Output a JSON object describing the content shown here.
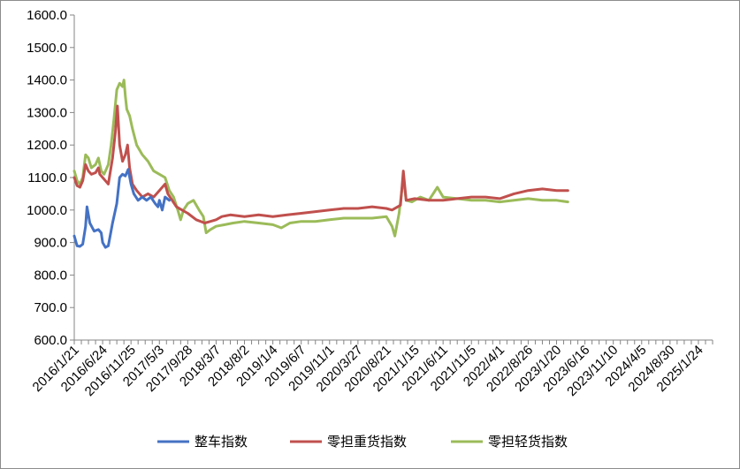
{
  "chart_data": {
    "type": "line",
    "title": "",
    "xlabel": "",
    "ylabel": "",
    "ylim": [
      600,
      1600
    ],
    "yticks": [
      "600.0",
      "700.0",
      "800.0",
      "900.0",
      "1000.0",
      "1100.0",
      "1200.0",
      "1300.0",
      "1400.0",
      "1500.0",
      "1600.0"
    ],
    "xticks": [
      "2016/1/21",
      "2016/6/24",
      "2016/11/25",
      "2017/5/3",
      "2017/9/28",
      "2018/3/7",
      "2018/8/2",
      "2019/1/4",
      "2019/6/7",
      "2019/11/1",
      "2020/3/27",
      "2020/8/21",
      "2021/1/15",
      "2021/6/11",
      "2021/11/5",
      "2022/4/1",
      "2022/8/26",
      "2023/1/20",
      "2023/6/16",
      "2023/11/10",
      "2024/4/5",
      "2024/8/30",
      "2025/1/24"
    ],
    "grid": false,
    "legend_position": "bottom",
    "series": [
      {
        "name": "整车指数",
        "color": "#4472c4",
        "points": [
          [
            0,
            920
          ],
          [
            0.05,
            905
          ],
          [
            0.1,
            890
          ],
          [
            0.2,
            888
          ],
          [
            0.3,
            895
          ],
          [
            0.4,
            950
          ],
          [
            0.45,
            1010
          ],
          [
            0.55,
            960
          ],
          [
            0.7,
            935
          ],
          [
            0.85,
            940
          ],
          [
            0.95,
            930
          ],
          [
            1.0,
            900
          ],
          [
            1.1,
            885
          ],
          [
            1.2,
            890
          ],
          [
            1.35,
            960
          ],
          [
            1.5,
            1020
          ],
          [
            1.6,
            1100
          ],
          [
            1.7,
            1110
          ],
          [
            1.8,
            1105
          ],
          [
            1.9,
            1125
          ],
          [
            2.0,
            1080
          ],
          [
            2.1,
            1050
          ],
          [
            2.25,
            1030
          ],
          [
            2.4,
            1040
          ],
          [
            2.55,
            1030
          ],
          [
            2.7,
            1040
          ],
          [
            2.85,
            1020
          ],
          [
            2.95,
            1010
          ],
          [
            3.0,
            1030
          ],
          [
            3.1,
            1000
          ],
          [
            3.2,
            1040
          ],
          [
            3.35,
            1030
          ]
        ]
      },
      {
        "name": "零担重货指数",
        "color": "#c0504d",
        "points": [
          [
            0,
            1100
          ],
          [
            0.1,
            1075
          ],
          [
            0.2,
            1070
          ],
          [
            0.3,
            1090
          ],
          [
            0.4,
            1140
          ],
          [
            0.5,
            1120
          ],
          [
            0.6,
            1110
          ],
          [
            0.75,
            1115
          ],
          [
            0.85,
            1130
          ],
          [
            0.9,
            1110
          ],
          [
            1.0,
            1100
          ],
          [
            1.1,
            1090
          ],
          [
            1.2,
            1080
          ],
          [
            1.35,
            1160
          ],
          [
            1.45,
            1240
          ],
          [
            1.52,
            1320
          ],
          [
            1.6,
            1200
          ],
          [
            1.7,
            1150
          ],
          [
            1.8,
            1170
          ],
          [
            1.88,
            1200
          ],
          [
            1.95,
            1130
          ],
          [
            2.05,
            1080
          ],
          [
            2.2,
            1060
          ],
          [
            2.4,
            1040
          ],
          [
            2.6,
            1050
          ],
          [
            2.8,
            1040
          ],
          [
            3.0,
            1060
          ],
          [
            3.2,
            1080
          ],
          [
            3.3,
            1050
          ],
          [
            3.45,
            1030
          ],
          [
            3.6,
            1010
          ],
          [
            3.8,
            1000
          ],
          [
            4.0,
            990
          ],
          [
            4.3,
            970
          ],
          [
            4.6,
            960
          ],
          [
            4.8,
            965
          ],
          [
            5.0,
            970
          ],
          [
            5.2,
            980
          ],
          [
            5.5,
            985
          ],
          [
            6.0,
            980
          ],
          [
            6.5,
            985
          ],
          [
            7.0,
            980
          ],
          [
            7.5,
            985
          ],
          [
            8.0,
            990
          ],
          [
            8.5,
            995
          ],
          [
            9.0,
            1000
          ],
          [
            9.5,
            1005
          ],
          [
            10.0,
            1005
          ],
          [
            10.5,
            1010
          ],
          [
            11.0,
            1005
          ],
          [
            11.2,
            1000
          ],
          [
            11.5,
            1015
          ],
          [
            11.6,
            1120
          ],
          [
            11.7,
            1030
          ],
          [
            12.0,
            1035
          ],
          [
            12.5,
            1030
          ],
          [
            13.0,
            1030
          ],
          [
            13.5,
            1035
          ],
          [
            14.0,
            1040
          ],
          [
            14.5,
            1040
          ],
          [
            15.0,
            1035
          ],
          [
            15.5,
            1050
          ],
          [
            16.0,
            1060
          ],
          [
            16.5,
            1065
          ],
          [
            17.0,
            1060
          ],
          [
            17.4,
            1060
          ]
        ]
      },
      {
        "name": "零担轻货指数",
        "color": "#9bbb59",
        "points": [
          [
            0,
            1120
          ],
          [
            0.1,
            1090
          ],
          [
            0.2,
            1080
          ],
          [
            0.3,
            1100
          ],
          [
            0.4,
            1170
          ],
          [
            0.5,
            1160
          ],
          [
            0.6,
            1130
          ],
          [
            0.75,
            1140
          ],
          [
            0.85,
            1160
          ],
          [
            0.95,
            1120
          ],
          [
            1.05,
            1110
          ],
          [
            1.2,
            1140
          ],
          [
            1.3,
            1200
          ],
          [
            1.4,
            1280
          ],
          [
            1.5,
            1370
          ],
          [
            1.6,
            1390
          ],
          [
            1.7,
            1380
          ],
          [
            1.75,
            1400
          ],
          [
            1.8,
            1350
          ],
          [
            1.85,
            1310
          ],
          [
            1.95,
            1290
          ],
          [
            2.05,
            1250
          ],
          [
            2.2,
            1200
          ],
          [
            2.4,
            1170
          ],
          [
            2.6,
            1150
          ],
          [
            2.8,
            1120
          ],
          [
            3.0,
            1110
          ],
          [
            3.2,
            1100
          ],
          [
            3.35,
            1060
          ],
          [
            3.5,
            1040
          ],
          [
            3.65,
            1000
          ],
          [
            3.75,
            970
          ],
          [
            3.85,
            1000
          ],
          [
            4.0,
            1020
          ],
          [
            4.2,
            1030
          ],
          [
            4.4,
            1000
          ],
          [
            4.55,
            980
          ],
          [
            4.65,
            930
          ],
          [
            4.8,
            940
          ],
          [
            5.0,
            950
          ],
          [
            5.3,
            955
          ],
          [
            5.6,
            960
          ],
          [
            6.0,
            965
          ],
          [
            6.5,
            960
          ],
          [
            7.0,
            955
          ],
          [
            7.3,
            945
          ],
          [
            7.6,
            960
          ],
          [
            8.0,
            965
          ],
          [
            8.5,
            965
          ],
          [
            9.0,
            970
          ],
          [
            9.5,
            975
          ],
          [
            10.0,
            975
          ],
          [
            10.5,
            975
          ],
          [
            11.0,
            980
          ],
          [
            11.2,
            950
          ],
          [
            11.3,
            920
          ],
          [
            11.45,
            990
          ],
          [
            11.6,
            1100
          ],
          [
            11.7,
            1030
          ],
          [
            11.9,
            1025
          ],
          [
            12.2,
            1040
          ],
          [
            12.5,
            1030
          ],
          [
            12.8,
            1070
          ],
          [
            13.0,
            1040
          ],
          [
            13.5,
            1035
          ],
          [
            14.0,
            1030
          ],
          [
            14.5,
            1030
          ],
          [
            15.0,
            1025
          ],
          [
            15.5,
            1030
          ],
          [
            16.0,
            1035
          ],
          [
            16.5,
            1030
          ],
          [
            17.0,
            1030
          ],
          [
            17.4,
            1025
          ]
        ]
      }
    ]
  }
}
